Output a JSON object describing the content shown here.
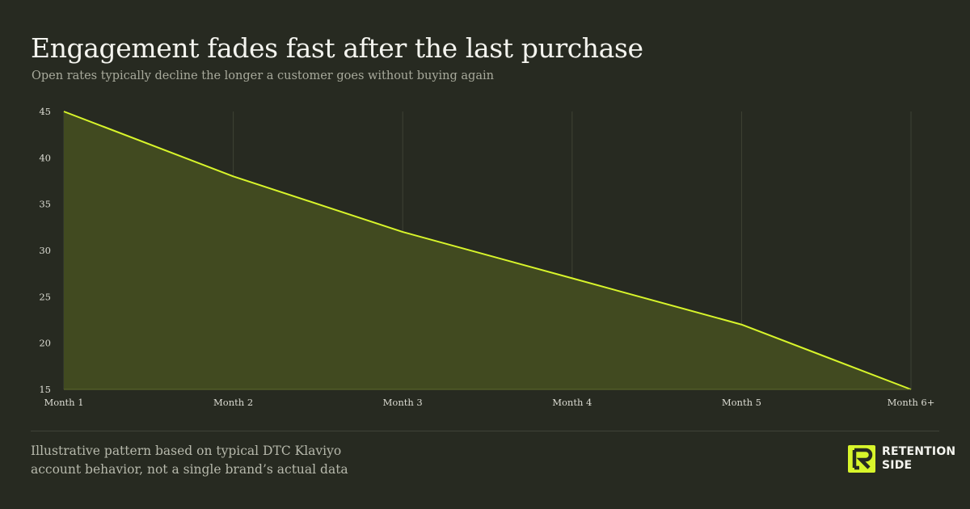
{
  "header": {
    "title": "Engagement fades fast after the last purchase",
    "subtitle": "Open rates typically decline the longer a customer goes without buying again"
  },
  "footer": {
    "note_line1": "Illustrative pattern based on typical DTC Klaviyo",
    "note_line2": "account behavior, not a single brand’s actual data"
  },
  "logo": {
    "line1": "RETENTION",
    "line2": "SIDE",
    "mark_icon": "retention-side-logo-icon"
  },
  "colors": {
    "background": "#272a21",
    "accent": "#d8f52b",
    "area_fill": "#414a20",
    "grid": "#3e4235"
  },
  "chart_data": {
    "type": "area",
    "categories": [
      "Month 1",
      "Month 2",
      "Month 3",
      "Month 4",
      "Month 5",
      "Month 6+"
    ],
    "values": [
      45,
      38,
      32,
      27,
      22,
      15
    ],
    "ylim": [
      15,
      45
    ],
    "yticks": [
      "15",
      "20",
      "25",
      "30",
      "35",
      "40",
      "45"
    ],
    "xlabel": "",
    "ylabel": "",
    "grid": "vertical",
    "legend": "none"
  }
}
